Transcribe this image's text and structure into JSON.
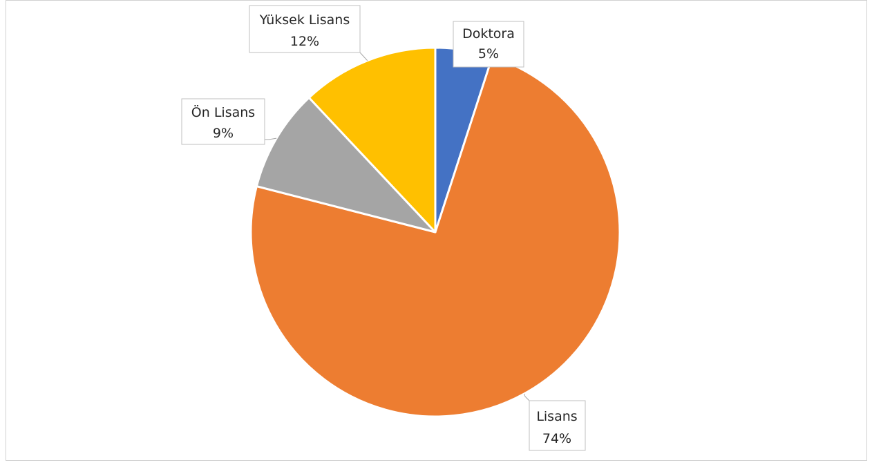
{
  "chart_data": {
    "type": "pie",
    "title": "",
    "show_legend": false,
    "start_angle_deg": 0,
    "direction": "clockwise",
    "slices": [
      {
        "name": "Doktora",
        "value": 5,
        "label": "5%",
        "color": "#4472C4"
      },
      {
        "name": "Lisans",
        "value": 74,
        "label": "74%",
        "color": "#ED7D31"
      },
      {
        "name": "Ön Lisans",
        "value": 9,
        "label": "9%",
        "color": "#A5A5A5"
      },
      {
        "name": "Yüksek Lisans",
        "value": 12,
        "label": "12%",
        "color": "#FFC000"
      }
    ]
  }
}
